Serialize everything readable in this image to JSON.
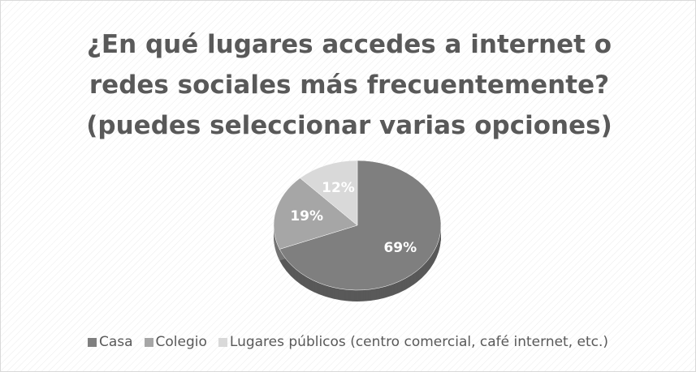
{
  "chart_data": {
    "type": "pie",
    "title": "¿En qué lugares accedes a internet o redes sociales más frecuentemente? (puedes seleccionar varias opciones)",
    "categories": [
      "Casa",
      "Colegio",
      "Lugares públicos (centro comercial, café internet, etc.)"
    ],
    "values": [
      69,
      19,
      12
    ],
    "value_labels": [
      "69%",
      "19%",
      "12%"
    ],
    "colors": [
      "#7f7f7f",
      "#a6a6a6",
      "#d9d9d9"
    ],
    "legend": "bottom"
  }
}
